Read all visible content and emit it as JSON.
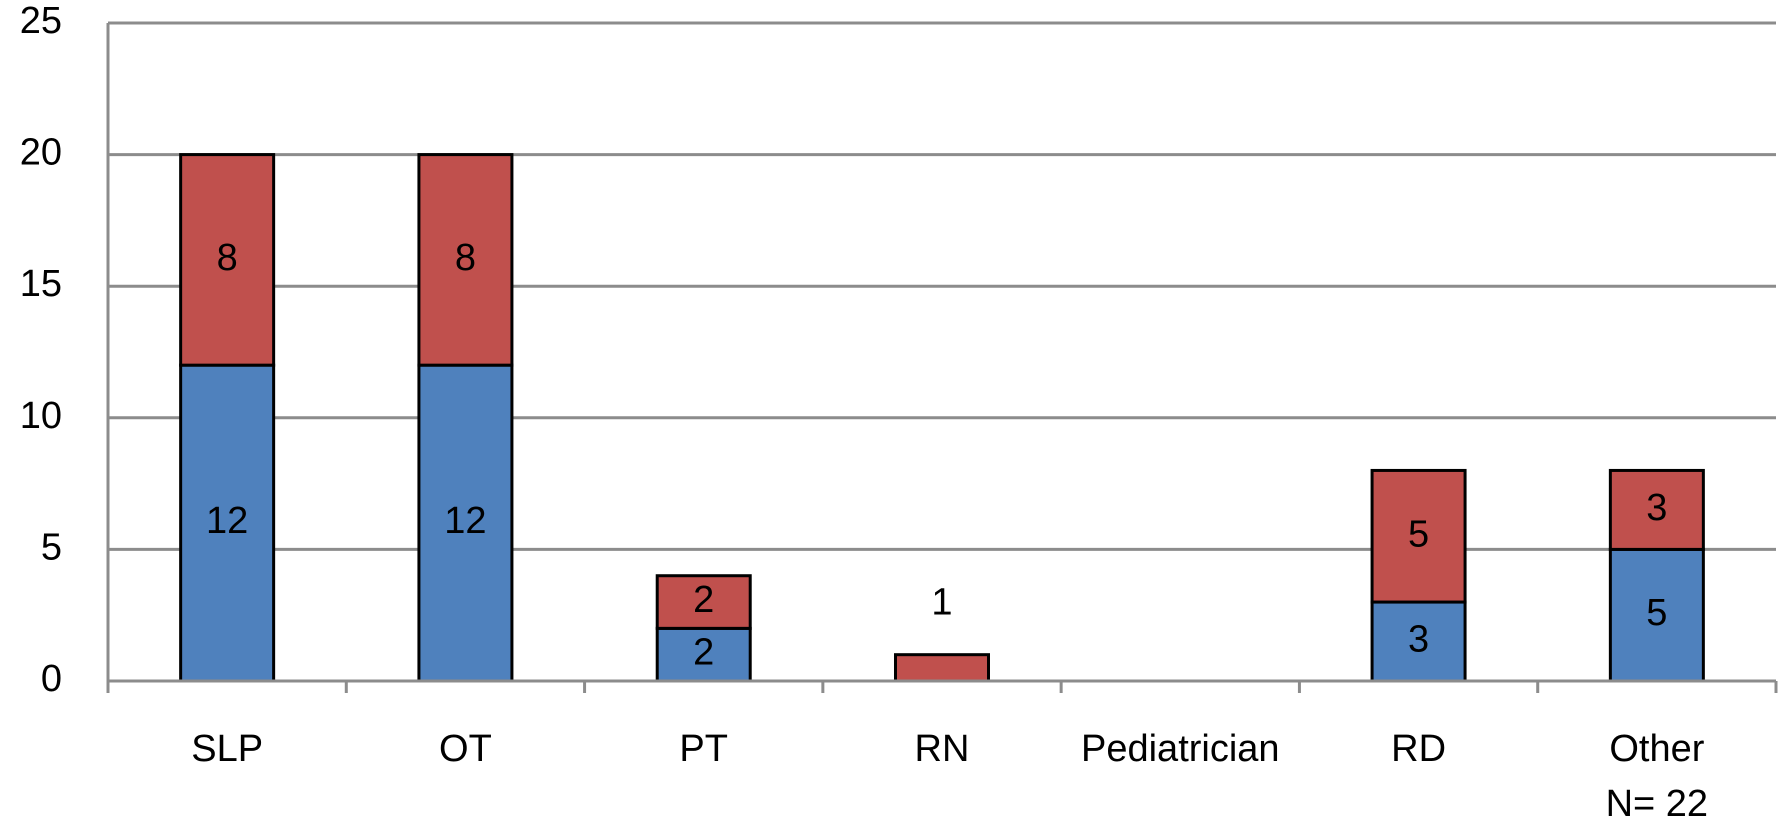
{
  "chart_data": {
    "type": "stacked_bar",
    "categories": [
      "SLP",
      "OT",
      "PT",
      "RN",
      "Pediatrician",
      "RD",
      "Other"
    ],
    "annotation": "N= 22",
    "series": [
      {
        "color": "#4f81bd",
        "values": [
          12,
          12,
          2,
          0,
          0,
          3,
          5
        ]
      },
      {
        "color": "#c0504d",
        "values": [
          8,
          8,
          2,
          1,
          0,
          5,
          3
        ]
      }
    ],
    "ylim": [
      0,
      25
    ],
    "yticks": [
      0,
      5,
      10,
      15,
      20,
      25
    ],
    "grid": true
  }
}
